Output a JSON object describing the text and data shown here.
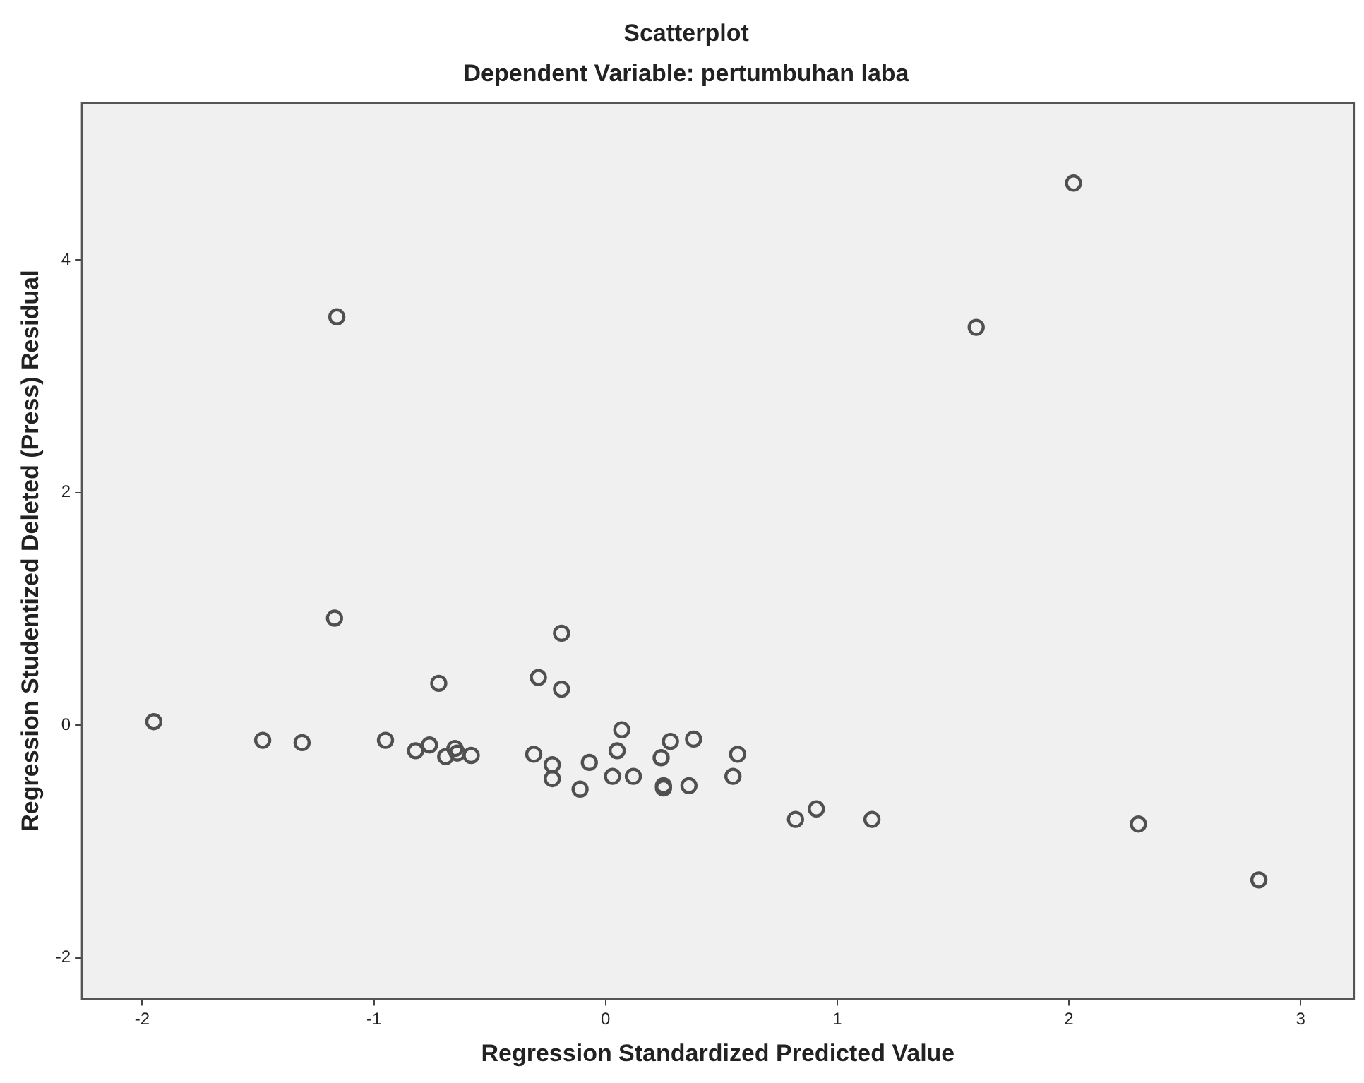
{
  "chart_data": {
    "type": "scatter",
    "title": "Scatterplot",
    "subtitle": "Dependent Variable: pertumbuhan laba",
    "xlabel": "Regression Standardized Predicted Value",
    "ylabel": "Regression Studentized Deleted (Press) Residual",
    "marker": "circle",
    "grid": false,
    "legend": false,
    "xlim": [
      -2.26,
      3.23
    ],
    "ylim": [
      -2.35,
      5.35
    ],
    "xticks": [
      -2,
      -1,
      0,
      1,
      2,
      3
    ],
    "yticks": [
      -2,
      0,
      2,
      4
    ],
    "series": [
      {
        "color": "#505050",
        "x": [
          -1.95,
          -1.48,
          -1.31,
          -1.16,
          -1.17,
          -0.95,
          -0.82,
          -0.76,
          -0.72,
          -0.69,
          -0.65,
          -0.64,
          -0.58,
          -0.31,
          -0.29,
          -0.23,
          -0.23,
          -0.19,
          -0.19,
          -0.11,
          -0.07,
          0.03,
          0.05,
          0.07,
          0.12,
          0.24,
          0.28,
          0.25,
          0.25,
          0.36,
          0.38,
          0.55,
          0.57,
          0.82,
          0.91,
          1.15,
          1.6,
          2.02,
          2.3,
          2.82
        ],
        "values": [
          0.03,
          -0.13,
          -0.15,
          3.51,
          0.92,
          -0.13,
          -0.22,
          -0.17,
          0.36,
          -0.27,
          -0.2,
          -0.24,
          -0.26,
          -0.25,
          0.41,
          -0.34,
          -0.46,
          0.79,
          0.31,
          -0.55,
          -0.32,
          -0.44,
          -0.22,
          -0.04,
          -0.44,
          -0.28,
          -0.14,
          -0.52,
          -0.54,
          -0.52,
          -0.12,
          -0.44,
          -0.25,
          -0.81,
          -0.72,
          -0.81,
          3.42,
          4.66,
          -0.85,
          -1.33
        ]
      }
    ]
  }
}
